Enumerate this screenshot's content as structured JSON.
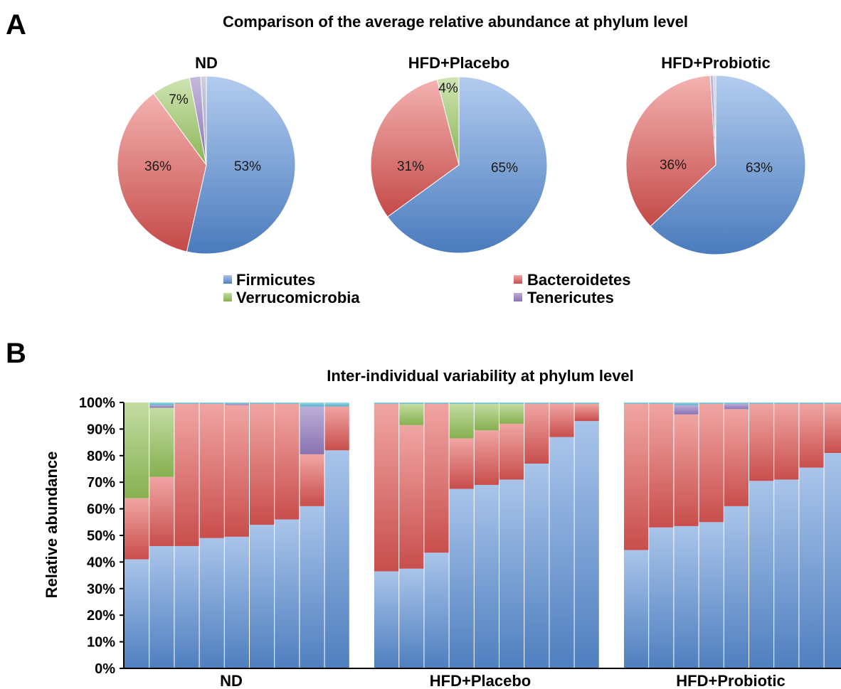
{
  "panel_a": {
    "letter": "A",
    "title": "Comparison of the average relative abundance at phylum level"
  },
  "panel_b": {
    "letter": "B",
    "title": "Inter-individual variability at phylum level"
  },
  "colors": {
    "Firmicutes": "#6f9bd1",
    "Bacteroidetes": "#d96e6c",
    "Verrucomicrobia": "#9dc26e",
    "Tenericutes": "#9a86bd",
    "Other": "#6cc3d6"
  },
  "legend": [
    {
      "name": "Firmicutes",
      "color": "#6f9bd1"
    },
    {
      "name": "Bacteroidetes",
      "color": "#d96e6c"
    },
    {
      "name": "Verrucomicrobia",
      "color": "#9dc26e"
    },
    {
      "name": "Tenericutes",
      "color": "#9a86bd"
    }
  ],
  "chart_data": [
    {
      "type": "pie",
      "title": "ND",
      "slices": [
        {
          "name": "Firmicutes",
          "value": 53,
          "label": "53%"
        },
        {
          "name": "Bacteroidetes",
          "value": 36,
          "label": "36%"
        },
        {
          "name": "Verrucomicrobia",
          "value": 7,
          "label": "7%"
        },
        {
          "name": "Tenericutes",
          "value": 2,
          "label": ""
        },
        {
          "name": "Other",
          "value": 1,
          "label": ""
        }
      ]
    },
    {
      "type": "pie",
      "title": "HFD+Placebo",
      "slices": [
        {
          "name": "Firmicutes",
          "value": 65,
          "label": "65%"
        },
        {
          "name": "Bacteroidetes",
          "value": 31,
          "label": "31%"
        },
        {
          "name": "Verrucomicrobia",
          "value": 4,
          "label": "4%"
        }
      ]
    },
    {
      "type": "pie",
      "title": "HFD+Probiotic",
      "slices": [
        {
          "name": "Firmicutes",
          "value": 63,
          "label": "63%"
        },
        {
          "name": "Bacteroidetes",
          "value": 36,
          "label": "36%"
        },
        {
          "name": "Tenericutes",
          "value": 0.6,
          "label": ""
        },
        {
          "name": "Other",
          "value": 0.4,
          "label": ""
        }
      ]
    },
    {
      "type": "bar",
      "stacked": true,
      "title": "Inter-individual variability at phylum level",
      "ylabel": "Relative abundance",
      "ylim": [
        0,
        100
      ],
      "yticks": [
        "0%",
        "10%",
        "20%",
        "30%",
        "40%",
        "50%",
        "60%",
        "70%",
        "80%",
        "90%",
        "100%"
      ],
      "groups": [
        {
          "name": "ND",
          "samples": [
            {
              "Firmicutes": 41,
              "Bacteroidetes": 23,
              "Verrucomicrobia": 36
            },
            {
              "Firmicutes": 46,
              "Bacteroidetes": 26,
              "Verrucomicrobia": 26,
              "Tenericutes": 1,
              "Other": 1
            },
            {
              "Firmicutes": 46,
              "Bacteroidetes": 53.5,
              "Other": 0.5
            },
            {
              "Firmicutes": 49,
              "Bacteroidetes": 50.5,
              "Other": 0.5
            },
            {
              "Firmicutes": 49.5,
              "Bacteroidetes": 49.5,
              "Tenericutes": 0.5,
              "Other": 0.5
            },
            {
              "Firmicutes": 54,
              "Bacteroidetes": 45.5,
              "Other": 0.5
            },
            {
              "Firmicutes": 56,
              "Bacteroidetes": 43.5,
              "Other": 0.5
            },
            {
              "Firmicutes": 61,
              "Bacteroidetes": 19.5,
              "Tenericutes": 18,
              "Other": 1.5
            },
            {
              "Firmicutes": 82,
              "Bacteroidetes": 16.5,
              "Other": 1.5
            }
          ]
        },
        {
          "name": "HFD+Placebo",
          "samples": [
            {
              "Firmicutes": 36.5,
              "Bacteroidetes": 63,
              "Other": 0.5
            },
            {
              "Firmicutes": 37.5,
              "Bacteroidetes": 54,
              "Verrucomicrobia": 8,
              "Other": 0.5
            },
            {
              "Firmicutes": 43.5,
              "Bacteroidetes": 56,
              "Other": 0.5
            },
            {
              "Firmicutes": 67.5,
              "Bacteroidetes": 19,
              "Verrucomicrobia": 13,
              "Other": 0.5
            },
            {
              "Firmicutes": 69,
              "Bacteroidetes": 20.5,
              "Verrucomicrobia": 10,
              "Other": 0.5
            },
            {
              "Firmicutes": 71,
              "Bacteroidetes": 21,
              "Verrucomicrobia": 7.5,
              "Other": 0.5
            },
            {
              "Firmicutes": 77,
              "Bacteroidetes": 22.5,
              "Other": 0.5
            },
            {
              "Firmicutes": 87,
              "Bacteroidetes": 12.5,
              "Other": 0.5
            },
            {
              "Firmicutes": 93,
              "Bacteroidetes": 6.5,
              "Other": 0.5
            }
          ]
        },
        {
          "name": "HFD+Probiotic",
          "samples": [
            {
              "Firmicutes": 44.5,
              "Bacteroidetes": 55,
              "Other": 0.5
            },
            {
              "Firmicutes": 53,
              "Bacteroidetes": 46.5,
              "Other": 0.5
            },
            {
              "Firmicutes": 53.5,
              "Bacteroidetes": 42,
              "Tenericutes": 3.5,
              "Other": 1
            },
            {
              "Firmicutes": 55,
              "Bacteroidetes": 44.5,
              "Other": 0.5
            },
            {
              "Firmicutes": 61,
              "Bacteroidetes": 36.5,
              "Tenericutes": 2,
              "Other": 0.5
            },
            {
              "Firmicutes": 70.5,
              "Bacteroidetes": 29,
              "Other": 0.5
            },
            {
              "Firmicutes": 71,
              "Bacteroidetes": 28.5,
              "Other": 0.5
            },
            {
              "Firmicutes": 75.5,
              "Bacteroidetes": 24,
              "Other": 0.5
            },
            {
              "Firmicutes": 81,
              "Bacteroidetes": 18.5,
              "Other": 0.5
            }
          ]
        }
      ]
    }
  ]
}
